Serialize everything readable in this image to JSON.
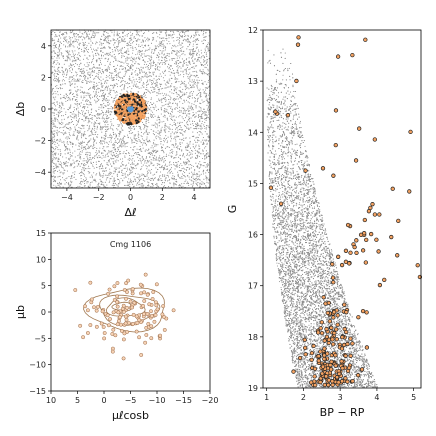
{
  "chart_data": [
    {
      "type": "scatter",
      "panel": "sky-position",
      "xlabel": "Δℓ",
      "ylabel": "Δb",
      "xlim": [
        -5,
        5
      ],
      "ylim": [
        -5,
        5
      ],
      "xticks": [
        -4,
        -2,
        0,
        2,
        4
      ],
      "yticks": [
        4,
        2,
        0,
        -2,
        -4
      ],
      "series": [
        {
          "role": "field",
          "color": "#8c8c8c",
          "distribution": "uniform",
          "n": 5000
        },
        {
          "role": "members",
          "color": "#f4a261",
          "distribution": "disc",
          "center": [
            0,
            0
          ],
          "radius": 1
        },
        {
          "role": "center-members",
          "color": "#5b9bd5",
          "distribution": "disc",
          "center": [
            0,
            0
          ],
          "radius": 0.15
        }
      ]
    },
    {
      "type": "scatter",
      "panel": "proper-motion",
      "title": "Cmg 1106",
      "xlabel": "μℓcosb",
      "ylabel": "μb",
      "xlim": [
        10,
        -20
      ],
      "ylim": [
        -15,
        15
      ],
      "xticks": [
        10,
        5,
        0,
        -5,
        -10,
        -15,
        -20
      ],
      "yticks": [
        15,
        10,
        5,
        0,
        -5,
        -10,
        -15
      ],
      "contour_color": "#a07850",
      "series": [
        {
          "role": "members",
          "color": "#f4a261",
          "center": [
            -4.5,
            0
          ],
          "spread": [
            4,
            3
          ],
          "n": 140
        }
      ],
      "contours": [
        {
          "center": [
            -4.5,
            0.5
          ],
          "half_width": [
            7.5,
            4.0
          ]
        },
        {
          "center": [
            -4.5,
            0.5
          ],
          "half_width": [
            5.5,
            2.8
          ]
        },
        {
          "center": [
            -4.0,
            0.8
          ],
          "half_width": [
            3.5,
            1.7
          ]
        },
        {
          "center": [
            -3.5,
            1.0
          ],
          "half_width": [
            1.8,
            0.8
          ]
        }
      ]
    },
    {
      "type": "scatter",
      "panel": "cmd",
      "xlabel": "BP − RP",
      "ylabel": "G",
      "xlim": [
        0.9,
        5.2
      ],
      "ylim": [
        19.0,
        12.0
      ],
      "xticks": [
        1,
        2,
        3,
        4,
        5
      ],
      "yticks": [
        12,
        13,
        14,
        15,
        16,
        17,
        18,
        19
      ],
      "series": [
        {
          "role": "field",
          "color": "#8c8c8c",
          "n": 9000
        },
        {
          "role": "members",
          "color": "#f4a261",
          "edge": "#222222",
          "n": 230
        }
      ]
    }
  ]
}
